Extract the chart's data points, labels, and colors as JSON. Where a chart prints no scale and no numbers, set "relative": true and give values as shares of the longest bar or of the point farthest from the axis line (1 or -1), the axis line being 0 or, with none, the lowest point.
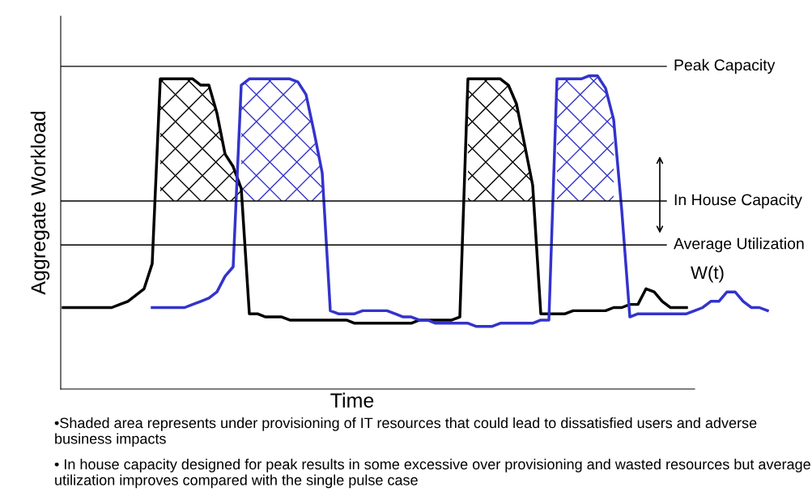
{
  "chart_data": {
    "type": "line",
    "relative": true,
    "xlabel": "Time",
    "ylabel": "Aggregate Workload",
    "categories": [
      null,
      null,
      null,
      null,
      null,
      null,
      null,
      null,
      null,
      null,
      null,
      null,
      null,
      null,
      null,
      null,
      null,
      null,
      null,
      null,
      null,
      null,
      null,
      null,
      null,
      null,
      null,
      null,
      null,
      null,
      null,
      null,
      null,
      null,
      null,
      null,
      null,
      null,
      null,
      null,
      null,
      null,
      null,
      null,
      null,
      null,
      null,
      null,
      null,
      null,
      null,
      null,
      null,
      null,
      null,
      null,
      null,
      null,
      null,
      null,
      null,
      null,
      null,
      null,
      null,
      null,
      null,
      null,
      null,
      null,
      null,
      null,
      null,
      null,
      null,
      null,
      null,
      null,
      null,
      null,
      null,
      null,
      null,
      null,
      null,
      null,
      null,
      null
    ],
    "series": [
      {
        "color": "#000000",
        "values": [
          0.26,
          0.26,
          0.26,
          0.26,
          0.26,
          0.26,
          0.26,
          0.27,
          0.28,
          0.3,
          0.32,
          0.4,
          0.99,
          0.99,
          0.99,
          0.99,
          0.99,
          0.97,
          0.97,
          0.88,
          0.75,
          0.71,
          0.64,
          0.24,
          0.24,
          0.23,
          0.23,
          0.23,
          0.22,
          0.22,
          0.22,
          0.22,
          0.22,
          0.22,
          0.22,
          0.22,
          0.21,
          0.21,
          0.21,
          0.21,
          0.21,
          0.21,
          0.21,
          0.21,
          0.22,
          0.22,
          0.22,
          0.22,
          0.22,
          0.23,
          0.99,
          0.99,
          0.99,
          0.99,
          0.99,
          0.97,
          0.91,
          0.78,
          0.65,
          0.24,
          0.24,
          0.24,
          0.24,
          0.25,
          0.25,
          0.25,
          0.25,
          0.25,
          0.26,
          0.26,
          0.27,
          0.27,
          0.32,
          0.31,
          0.28,
          0.26,
          0.26,
          0.26,
          null,
          null,
          null,
          null,
          null,
          null,
          null,
          null,
          null,
          null
        ]
      },
      {
        "color": "#3333cc",
        "values": [
          null,
          null,
          null,
          null,
          null,
          null,
          null,
          null,
          null,
          null,
          null,
          0.26,
          0.26,
          0.26,
          0.26,
          0.26,
          0.27,
          0.28,
          0.29,
          0.31,
          0.36,
          0.39,
          0.97,
          0.99,
          0.99,
          0.99,
          0.99,
          0.99,
          0.99,
          0.98,
          0.94,
          0.82,
          0.69,
          0.25,
          0.24,
          0.24,
          0.24,
          0.25,
          0.25,
          0.25,
          0.25,
          0.24,
          0.23,
          0.23,
          0.22,
          0.22,
          0.21,
          0.21,
          0.21,
          0.21,
          0.21,
          0.2,
          0.2,
          0.2,
          0.21,
          0.21,
          0.21,
          0.21,
          0.21,
          0.22,
          0.22,
          0.99,
          0.99,
          0.99,
          0.99,
          1.0,
          1.0,
          0.96,
          0.86,
          0.57,
          0.23,
          0.24,
          0.24,
          0.24,
          0.24,
          0.24,
          0.24,
          0.24,
          0.25,
          0.26,
          0.28,
          0.28,
          0.31,
          0.31,
          0.28,
          0.26,
          0.26,
          0.25
        ]
      }
    ],
    "ref_lines": [
      {
        "axis": "y",
        "value": 1.03,
        "label": "Peak Capacity"
      },
      {
        "axis": "y",
        "value": 0.6,
        "label": "In House Capacity"
      },
      {
        "axis": "y",
        "value": 0.46,
        "label": "Average Utilization"
      }
    ],
    "annotations": [
      "W(t)",
      "•Shaded area represents under provisioning of IT resources that could lead to dissatisfied users and adverse business impacts",
      "• In house capacity designed for peak results in some excessive over provisioning and wasted resources but average utilization improves compared with the single pulse case"
    ],
    "line_style": "solid",
    "marker": "none",
    "legend": false
  }
}
